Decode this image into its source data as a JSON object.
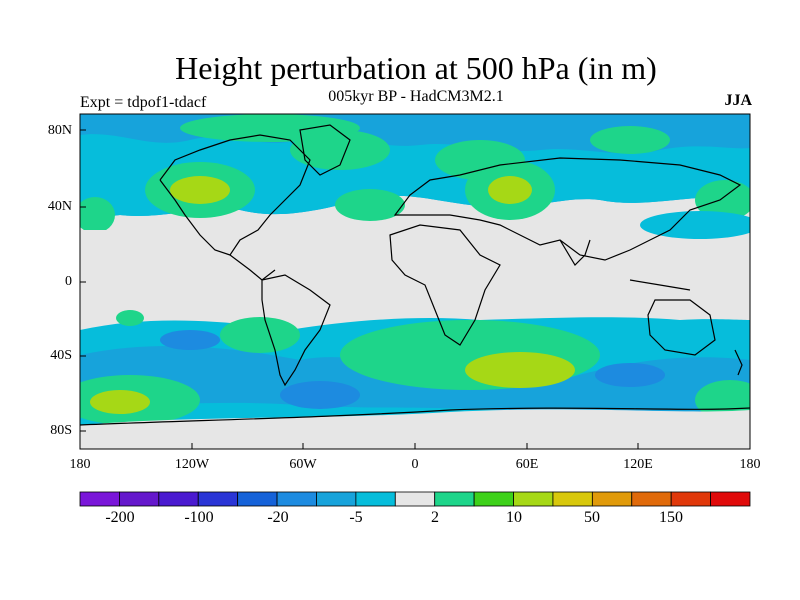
{
  "title": "Height perturbation at 500 hPa (in m)",
  "subtitle": "005kyr BP - HadCM3M2.1",
  "experiment": "Expt = tdpof1-tdacf",
  "season": "JJA",
  "lat_ticks": [
    "80N",
    "40N",
    "0",
    "40S",
    "80S"
  ],
  "lon_ticks": [
    "180",
    "120W",
    "60W",
    "0",
    "60E",
    "120E",
    "180"
  ],
  "colors": {
    "ocean_bg": "#e6e6e6",
    "levels": [
      "#7a16d9",
      "#6518cc",
      "#4a1ad0",
      "#2a35d6",
      "#1562d9",
      "#1d8be0",
      "#17a3db",
      "#06bddb",
      "#e6e6e6",
      "#1ed58a",
      "#3ed11a",
      "#a6d816",
      "#d8c80c",
      "#e09a0a",
      "#e06a0a",
      "#e0380a",
      "#e00a0a"
    ]
  },
  "colorbar": {
    "labels": [
      "-200",
      "-100",
      "-20",
      "-5",
      "2",
      "10",
      "50",
      "150"
    ]
  },
  "icons": [
    "coastline-map"
  ]
}
